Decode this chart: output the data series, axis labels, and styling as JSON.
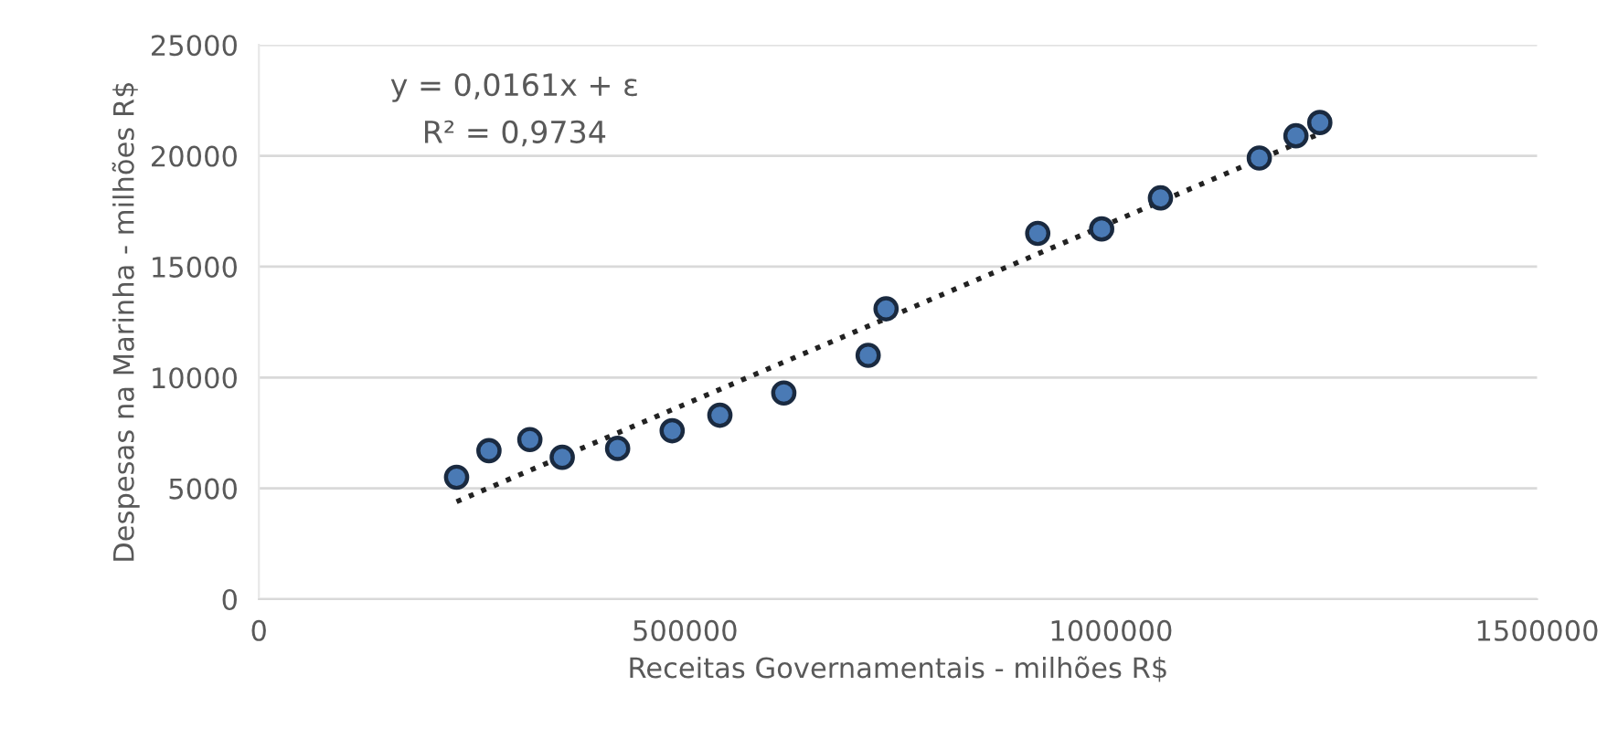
{
  "chart_data": {
    "type": "scatter",
    "xlabel": "Receitas Governamentais - milhões R$",
    "ylabel": "Despesas na Marinha - milhões R$",
    "annotations": [
      "y = 0,0161x + ε",
      "R² = 0,9734"
    ],
    "series": [
      {
        "color": "#4a7ab5",
        "marker": "circle",
        "x": [
          232000,
          270000,
          318000,
          356000,
          421000,
          485000,
          541000,
          616000,
          715000,
          736000,
          914000,
          989000,
          1058000,
          1174000,
          1217000,
          1245000
        ],
        "values": [
          5500,
          6700,
          7200,
          6400,
          6800,
          7600,
          8300,
          9300,
          11000,
          13100,
          16500,
          16700,
          18100,
          19900,
          20900,
          21500
        ]
      },
      {
        "type": "line",
        "color": "#222222",
        "line_style": "dotted",
        "marker": "none",
        "x": [
          232000,
          1245000
        ],
        "values": [
          4400,
          21000
        ]
      }
    ],
    "xlim": [
      0,
      1500000
    ],
    "xticks": [
      0,
      500000,
      1000000,
      1500000
    ],
    "ylim": [
      0,
      25000
    ],
    "yticks": [
      0,
      5000,
      10000,
      15000,
      20000,
      25000
    ],
    "grid": "y",
    "legend": false
  }
}
